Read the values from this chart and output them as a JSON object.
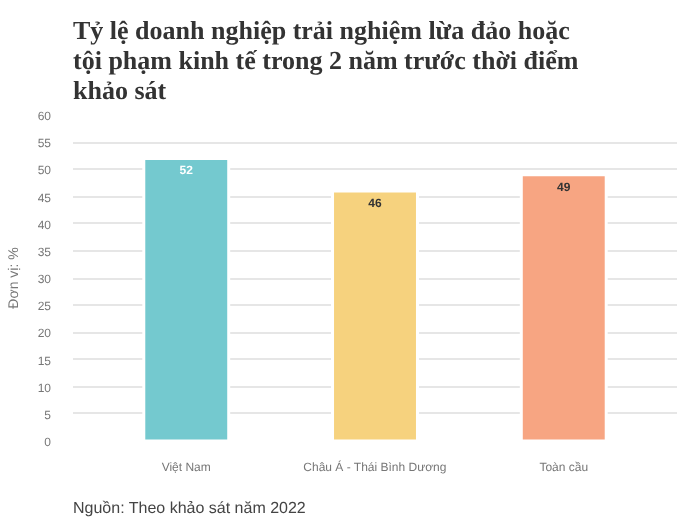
{
  "chart_data": {
    "type": "bar",
    "title": "Tỷ lệ doanh nghiệp trải nghiệm lừa đảo hoặc tội phạm kinh tế trong 2 năm trước thời điểm khảo sát",
    "ylabel": "Đơn vị: %",
    "categories": [
      "Việt Nam",
      "Châu Á - Thái Bình Dương",
      "Toàn cầu"
    ],
    "values": [
      52,
      46,
      49
    ],
    "colors": [
      "#74c9cf",
      "#f6d27e",
      "#f7a582"
    ],
    "ylim": [
      0,
      60
    ],
    "yticks": [
      0,
      5,
      10,
      15,
      20,
      25,
      30,
      35,
      40,
      45,
      50,
      55,
      60
    ],
    "grid": "y",
    "data_labels": true,
    "annotations": [
      "Nguồn: Theo khảo sát năm 2022"
    ]
  }
}
